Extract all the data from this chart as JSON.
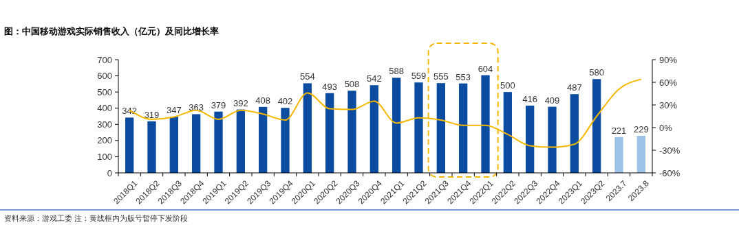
{
  "chart_data": {
    "type": "bar",
    "title": "图：中国移动游戏实际销售收入（亿元）及同比增长率",
    "categories": [
      "2018Q1",
      "2018Q2",
      "2018Q3",
      "2018Q4",
      "2019Q1",
      "2019Q2",
      "2019Q3",
      "2019Q4",
      "2020Q1",
      "2020Q2",
      "2020Q3",
      "2020Q4",
      "2021Q1",
      "2021Q2",
      "2021Q3",
      "2021Q4",
      "2022Q1",
      "2022Q2",
      "2022Q3",
      "2022Q4",
      "2023Q1",
      "2023Q2",
      "2023.7",
      "2023.8"
    ],
    "series": [
      {
        "values": [
          342,
          319,
          347,
          363,
          379,
          392,
          408,
          402,
          554,
          493,
          508,
          542,
          588,
          559,
          555,
          553,
          604,
          500,
          416,
          409,
          487,
          580,
          221,
          229
        ],
        "colors": [
          "#0b4ba0",
          "#0b4ba0",
          "#0b4ba0",
          "#0b4ba0",
          "#0b4ba0",
          "#0b4ba0",
          "#0b4ba0",
          "#0b4ba0",
          "#0b4ba0",
          "#0b4ba0",
          "#0b4ba0",
          "#0b4ba0",
          "#0b4ba0",
          "#0b4ba0",
          "#0b4ba0",
          "#0b4ba0",
          "#0b4ba0",
          "#0b4ba0",
          "#0b4ba0",
          "#0b4ba0",
          "#0b4ba0",
          "#0b4ba0",
          "#9dc3e6",
          "#9dc3e6"
        ],
        "value_labels": [
          "342",
          "319",
          "347",
          "363",
          "379",
          "392",
          "408",
          "402",
          "554",
          "493",
          "508",
          "542",
          "588",
          "559",
          "555",
          "553",
          "604",
          "500",
          "416",
          "409",
          "487",
          "580",
          "221",
          "229"
        ]
      },
      {
        "type": "line",
        "axis": "y2",
        "color": "#f5b800",
        "values": [
          23,
          11,
          14,
          23,
          11,
          23,
          18,
          10,
          46,
          25,
          24,
          35,
          6,
          13,
          10,
          3,
          3,
          -9,
          -24,
          -26,
          -22,
          15,
          51,
          64
        ]
      }
    ],
    "ylim": [
      0,
      700
    ],
    "yticks": [
      0,
      100,
      200,
      300,
      400,
      500,
      600,
      700
    ],
    "y2lim": [
      -60,
      90
    ],
    "y2ticks": [
      {
        "value": -60,
        "label": "-60%"
      },
      {
        "value": -30,
        "label": "-30%"
      },
      {
        "value": 0,
        "label": "0%"
      },
      {
        "value": 30,
        "label": "30%"
      },
      {
        "value": 60,
        "label": "60%"
      },
      {
        "value": 90,
        "label": "90%"
      }
    ],
    "marker": "none",
    "line_style": "solid",
    "grid": false,
    "annotations": [
      "资料来源：游戏工委 注：黄线框内为版号暂停下发阶段"
    ]
  }
}
